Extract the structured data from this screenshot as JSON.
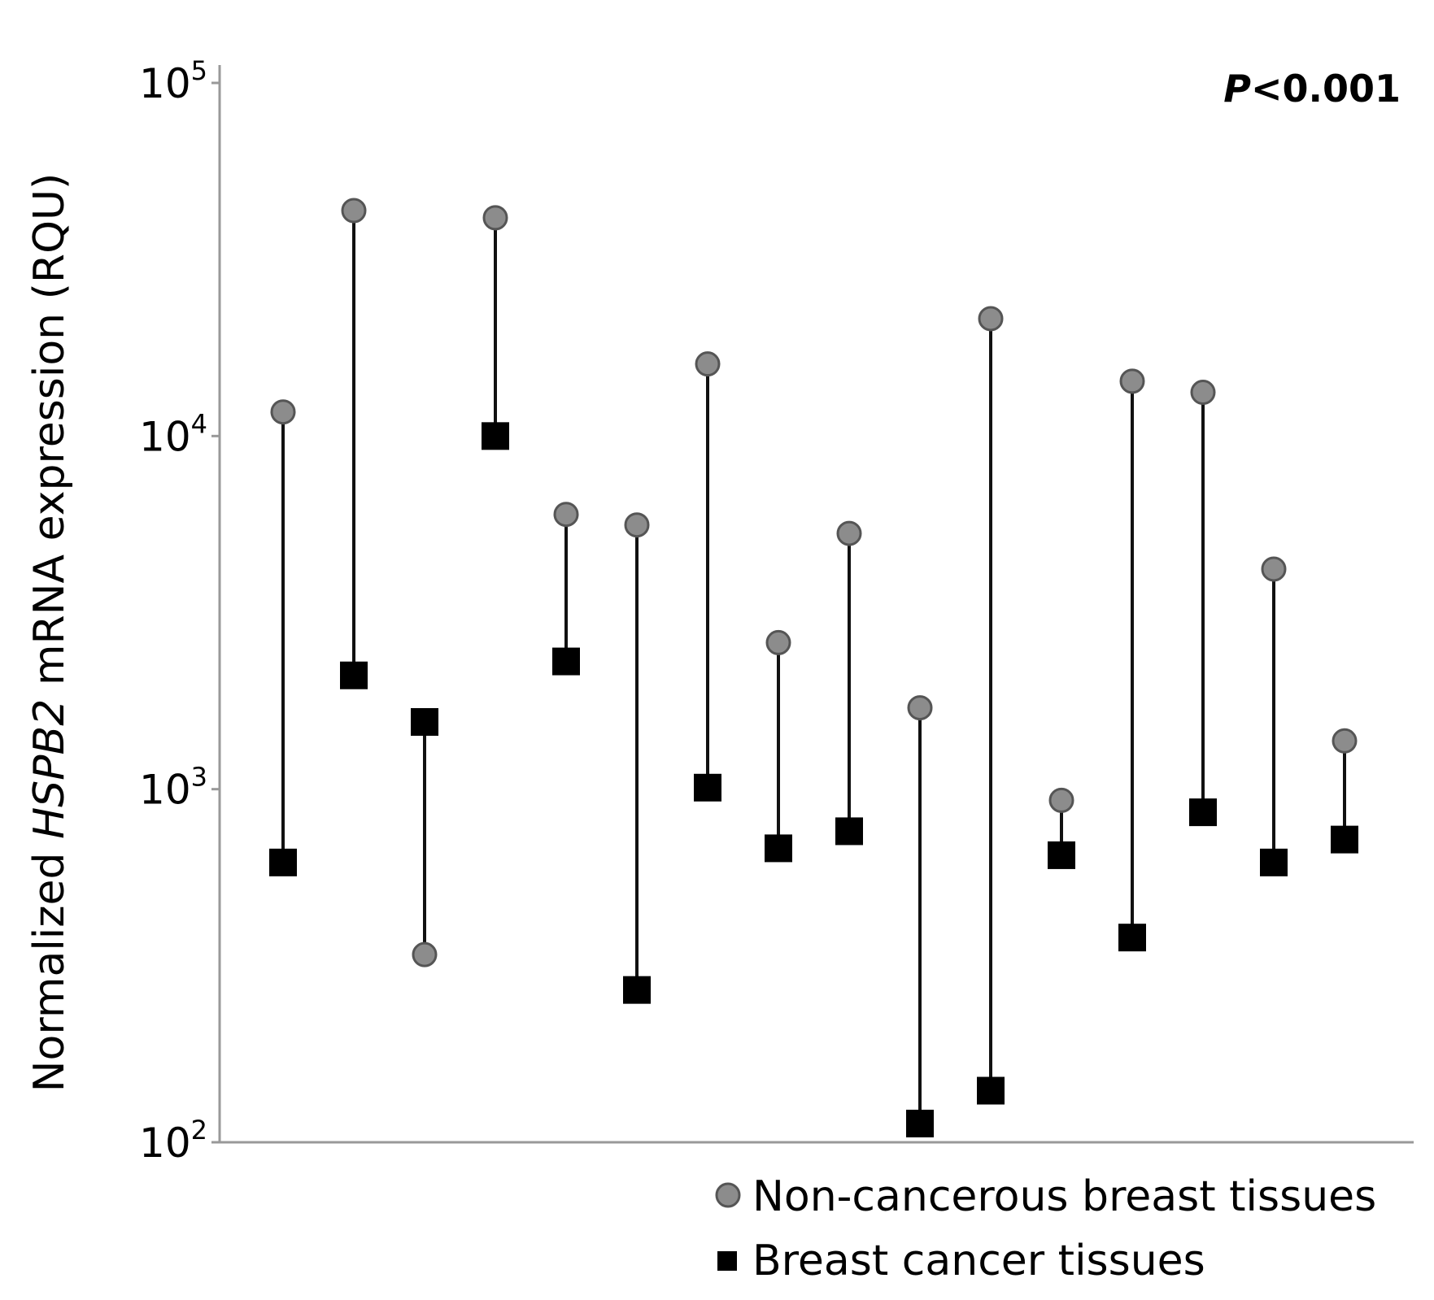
{
  "chart_data": {
    "type": "scatter",
    "subtype": "paired-dot-plot",
    "yscale": "log",
    "ylim": [
      100,
      100000
    ],
    "ylabel": {
      "prefix": "Normalized ",
      "gene": "HSPB2",
      "suffix": " mRNA expression (RQU)"
    },
    "yticks": [
      {
        "base": "10",
        "exp": "2",
        "value": 100
      },
      {
        "base": "10",
        "exp": "3",
        "value": 1000
      },
      {
        "base": "10",
        "exp": "4",
        "value": 10000
      },
      {
        "base": "10",
        "exp": "5",
        "value": 100000
      }
    ],
    "annotation": {
      "p_letter": "P",
      "p_rest": "<0.001"
    },
    "legend": {
      "position": "bottom-right",
      "items": [
        "Non-cancerous breast tissues",
        "Breast cancer tissues"
      ]
    },
    "series": [
      {
        "name": "Non-cancerous breast tissues",
        "marker": "circle",
        "color": "#8c8c8c",
        "values": [
          11700,
          43500,
          340,
          41500,
          6000,
          5600,
          16000,
          2600,
          5300,
          1700,
          21500,
          930,
          14300,
          13300,
          4200,
          1370
        ]
      },
      {
        "name": "Breast cancer tissues",
        "marker": "square",
        "color": "#000000",
        "values": [
          620,
          2100,
          1550,
          10000,
          2300,
          270,
          1010,
          680,
          760,
          113,
          140,
          650,
          380,
          860,
          620,
          720
        ]
      }
    ],
    "pairs": 16
  }
}
